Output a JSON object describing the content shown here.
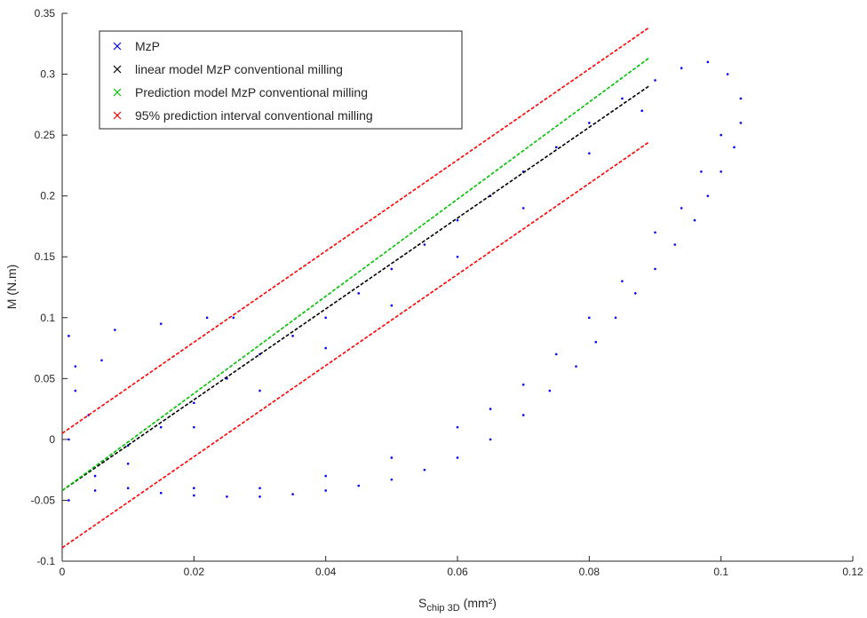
{
  "chart_data": {
    "type": "scatter",
    "xlabel": "S",
    "xlabel_sub": "chip 3D",
    "xlabel_unit": "(mm²)",
    "ylabel": "M (N.m)",
    "xlim": [
      0,
      0.12
    ],
    "ylim": [
      -0.1,
      0.35
    ],
    "xticks": [
      0,
      0.02,
      0.04,
      0.06,
      0.08,
      0.1,
      0.12
    ],
    "yticks": [
      -0.1,
      -0.05,
      0,
      0.05,
      0.1,
      0.15,
      0.2,
      0.25,
      0.3,
      0.35
    ],
    "legend": "top-left",
    "series": [
      {
        "name": "MzP",
        "color": "#0000ff",
        "style": "markers",
        "x": [
          0.005,
          0.01,
          0.015,
          0.02,
          0.025,
          0.03,
          0.035,
          0.04,
          0.045,
          0.05,
          0.055,
          0.06,
          0.065,
          0.07,
          0.075,
          0.08,
          0.085,
          0.09,
          0.01,
          0.02,
          0.03,
          0.04,
          0.05,
          0.06,
          0.07,
          0.08,
          0.088,
          0.094,
          0.098,
          0.101,
          0.103,
          0.103,
          0.102,
          0.1,
          0.098,
          0.096,
          0.093,
          0.09,
          0.087,
          0.084,
          0.081,
          0.078,
          0.074,
          0.07,
          0.065,
          0.06,
          0.055,
          0.05,
          0.045,
          0.04,
          0.035,
          0.03,
          0.025,
          0.02,
          0.015,
          0.01,
          0.005,
          0.001,
          0.1,
          0.097,
          0.094,
          0.09,
          0.085,
          0.08,
          0.075,
          0.07,
          0.065,
          0.06,
          0.05,
          0.04,
          0.03,
          0.02,
          0.001,
          0.008,
          0.015,
          0.022,
          0.026,
          0.002,
          0.006,
          0.002,
          0.004,
          0.001
        ],
        "values": [
          -0.03,
          -0.005,
          0.01,
          0.03,
          0.05,
          0.07,
          0.085,
          0.1,
          0.12,
          0.14,
          0.16,
          0.18,
          0.2,
          0.22,
          0.24,
          0.26,
          0.28,
          0.295,
          -0.02,
          0.01,
          0.04,
          0.075,
          0.11,
          0.15,
          0.19,
          0.235,
          0.27,
          0.305,
          0.31,
          0.3,
          0.28,
          0.26,
          0.24,
          0.22,
          0.2,
          0.18,
          0.16,
          0.14,
          0.12,
          0.1,
          0.08,
          0.06,
          0.04,
          0.02,
          0.0,
          -0.015,
          -0.025,
          -0.033,
          -0.038,
          -0.042,
          -0.045,
          -0.047,
          -0.047,
          -0.046,
          -0.044,
          -0.04,
          -0.042,
          -0.05,
          0.25,
          0.22,
          0.19,
          0.17,
          0.13,
          0.1,
          0.07,
          0.045,
          0.025,
          0.01,
          -0.015,
          -0.03,
          -0.04,
          -0.04,
          0.085,
          0.09,
          0.095,
          0.1,
          0.1,
          0.06,
          0.065,
          0.04,
          0.02,
          0.0
        ]
      },
      {
        "name": "linear model MzP conventional milling",
        "color": "#000000",
        "style": "line",
        "x": [
          0,
          0.089
        ],
        "values": [
          -0.042,
          0.29
        ]
      },
      {
        "name": "Prediction model MzP conventional milling",
        "color": "#00c000",
        "style": "line",
        "x": [
          0,
          0.089
        ],
        "values": [
          -0.042,
          0.313
        ]
      },
      {
        "name": "95% prediction interval conventional milling",
        "color": "#ff0000",
        "style": "line",
        "x": [
          0,
          0.089
        ],
        "values": [
          0.005,
          0.338
        ]
      },
      {
        "name": "95% prediction interval conventional milling",
        "color": "#ff0000",
        "style": "line",
        "legend": false,
        "x": [
          0,
          0.089
        ],
        "values": [
          -0.089,
          0.244
        ]
      }
    ]
  }
}
